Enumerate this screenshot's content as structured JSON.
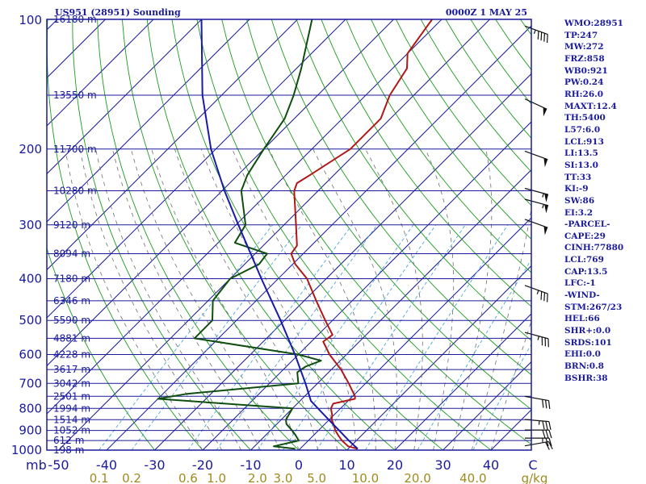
{
  "header": {
    "station_title": "US951 (28951) Sounding",
    "time_title": "0000Z  1 MAY 25"
  },
  "colors": {
    "frame": "#1a1a9c",
    "temperature": "#b01818",
    "dewpoint": "#104e10",
    "parcel": "#1a1aa8",
    "dry_adiabat": "#1d9b1d",
    "moist_adiabat": "#6e6e6e",
    "mixing_ratio": "#4aa8d8",
    "mixing_label": "#a08a1e",
    "wind_barb": "#111111"
  },
  "axis_labels": {
    "pressure_unit": "mb",
    "temperature_unit": "C",
    "mixing_unit": "g/kg"
  },
  "indices": [
    "WMO:28951",
    "TP:247",
    "MW:272",
    "FRZ:858",
    "WB0:921",
    "PW:0.24",
    "RH:26.0",
    "MAXT:12.4",
    "TH:5400",
    "L57:6.0",
    "LCL:913",
    "LI:13.5",
    "SI:13.0",
    "TT:33",
    "KI:-9",
    "SW:86",
    "EI:3.2",
    "-PARCEL-",
    "CAPE:29",
    "CINH:77880",
    "LCL:769",
    "CAP:13.5",
    "LFC:-1",
    "-WIND-",
    "STM:267/23",
    "HEL:66",
    "SHR+:0.0",
    "SRDS:101",
    "EHI:0.0",
    "BRN:0.8",
    "BSHR:38"
  ],
  "chart_data": {
    "type": "line",
    "title": "US951 (28951) Sounding",
    "subtitle": "0000Z  1 MAY 25",
    "ylabel": "mb",
    "xlabel": "C",
    "y_scale": "log-pressure",
    "ylim": [
      1000,
      100
    ],
    "xlim": [
      -50,
      50
    ],
    "skew": "temperature lines skewed 45 degrees",
    "pressure_ticks": [
      100,
      200,
      300,
      400,
      500,
      600,
      700,
      800,
      900,
      1000
    ],
    "temperature_ticks": [
      -50,
      -40,
      -30,
      -20,
      -10,
      0,
      10,
      20,
      30,
      40
    ],
    "height_levels": [
      {
        "p": 100,
        "label": "16180 m"
      },
      {
        "p": 150,
        "label": "13550 m"
      },
      {
        "p": 200,
        "label": "11700 m"
      },
      {
        "p": 250,
        "label": "10280 m"
      },
      {
        "p": 300,
        "label": "9120 m"
      },
      {
        "p": 350,
        "label": "8094 m"
      },
      {
        "p": 400,
        "label": "7180 m"
      },
      {
        "p": 450,
        "label": "6346 m"
      },
      {
        "p": 500,
        "label": "5590 m"
      },
      {
        "p": 550,
        "label": "4881 m"
      },
      {
        "p": 600,
        "label": "4228 m"
      },
      {
        "p": 650,
        "label": "3617 m"
      },
      {
        "p": 700,
        "label": "3042 m"
      },
      {
        "p": 750,
        "label": "2501 m"
      },
      {
        "p": 800,
        "label": "1994 m"
      },
      {
        "p": 850,
        "label": "1514 m"
      },
      {
        "p": 900,
        "label": "1052 m"
      },
      {
        "p": 950,
        "label": "612 m"
      },
      {
        "p": 1000,
        "label": "198 m"
      }
    ],
    "mixing_ratio_labels": [
      {
        "w": 0.1,
        "label": "0.1"
      },
      {
        "w": 0.2,
        "label": "0.2"
      },
      {
        "w": 0.6,
        "label": "0.6"
      },
      {
        "w": 1.0,
        "label": "1.0"
      },
      {
        "w": 2.0,
        "label": "2.0"
      },
      {
        "w": 3.0,
        "label": "3.0"
      },
      {
        "w": 5.0,
        "label": "5.0"
      },
      {
        "w": 10.0,
        "label": "10.0"
      },
      {
        "w": 20.0,
        "label": "20.0"
      },
      {
        "w": 40.0,
        "label": "40.0"
      }
    ],
    "series": [
      {
        "name": "",
        "role": "temperature",
        "points": [
          [
            993,
            12.0
          ],
          [
            980,
            9.5
          ],
          [
            950,
            7.0
          ],
          [
            925,
            5.2
          ],
          [
            900,
            3.5
          ],
          [
            865,
            1.5
          ],
          [
            850,
            0.5
          ],
          [
            830,
            -0.3
          ],
          [
            800,
            -2.0
          ],
          [
            780,
            -2.5
          ],
          [
            760,
            1.0
          ],
          [
            750,
            0.5
          ],
          [
            700,
            -3.5
          ],
          [
            650,
            -8.0
          ],
          [
            600,
            -13.5
          ],
          [
            560,
            -17.5
          ],
          [
            540,
            -17.0
          ],
          [
            500,
            -21.5
          ],
          [
            450,
            -27.5
          ],
          [
            400,
            -34.0
          ],
          [
            370,
            -39.5
          ],
          [
            350,
            -42.5
          ],
          [
            335,
            -43.0
          ],
          [
            300,
            -47.5
          ],
          [
            250,
            -55.0
          ],
          [
            240,
            -56.0
          ],
          [
            230,
            -55.0
          ],
          [
            200,
            -52.0
          ],
          [
            170,
            -52.0
          ],
          [
            150,
            -55.0
          ],
          [
            130,
            -57.0
          ],
          [
            120,
            -60.0
          ],
          [
            100,
            -62.0
          ]
        ]
      },
      {
        "name": "",
        "role": "dewpoint",
        "points": [
          [
            993,
            -1.0
          ],
          [
            980,
            -6.0
          ],
          [
            950,
            -2.0
          ],
          [
            920,
            -4.0
          ],
          [
            900,
            -5.5
          ],
          [
            870,
            -8.0
          ],
          [
            850,
            -9.0
          ],
          [
            800,
            -10.0
          ],
          [
            760,
            -40.0
          ],
          [
            740,
            -35.0
          ],
          [
            700,
            -14.0
          ],
          [
            660,
            -16.5
          ],
          [
            640,
            -16.0
          ],
          [
            620,
            -14.0
          ],
          [
            600,
            -20.0
          ],
          [
            550,
            -45.0
          ],
          [
            500,
            -45.0
          ],
          [
            450,
            -49.0
          ],
          [
            400,
            -50.0
          ],
          [
            370,
            -47.0
          ],
          [
            350,
            -47.5
          ],
          [
            330,
            -56.5
          ],
          [
            300,
            -58.0
          ],
          [
            250,
            -66.0
          ],
          [
            230,
            -68.0
          ],
          [
            200,
            -70.0
          ],
          [
            170,
            -72.0
          ],
          [
            150,
            -75.0
          ],
          [
            130,
            -79.0
          ],
          [
            100,
            -87.0
          ]
        ]
      },
      {
        "name": "",
        "role": "parcel",
        "points": [
          [
            993,
            12.0
          ],
          [
            950,
            8.4
          ],
          [
            900,
            4.3
          ],
          [
            850,
            -0.1
          ],
          [
            800,
            -4.7
          ],
          [
            769,
            -7.7
          ],
          [
            700,
            -12.5
          ],
          [
            600,
            -20.7
          ],
          [
            500,
            -30.8
          ],
          [
            400,
            -43.5
          ],
          [
            300,
            -59.5
          ],
          [
            250,
            -69.5
          ],
          [
            200,
            -81.0
          ],
          [
            150,
            -94.0
          ],
          [
            100,
            -110.0
          ]
        ]
      }
    ],
    "wind_barbs": [
      {
        "p": 990,
        "dir": 260,
        "kt": 20
      },
      {
        "p": 950,
        "dir": 270,
        "kt": 25
      },
      {
        "p": 910,
        "dir": 270,
        "kt": 30
      },
      {
        "p": 860,
        "dir": 275,
        "kt": 35
      },
      {
        "p": 760,
        "dir": 280,
        "kt": 30
      },
      {
        "p": 540,
        "dir": 285,
        "kt": 35
      },
      {
        "p": 420,
        "dir": 290,
        "kt": 35
      },
      {
        "p": 295,
        "dir": 290,
        "kt": 50
      },
      {
        "p": 265,
        "dir": 285,
        "kt": 55
      },
      {
        "p": 250,
        "dir": 285,
        "kt": 55
      },
      {
        "p": 205,
        "dir": 290,
        "kt": 50
      },
      {
        "p": 155,
        "dir": 295,
        "kt": 50
      },
      {
        "p": 105,
        "dir": 290,
        "kt": 45
      }
    ]
  }
}
